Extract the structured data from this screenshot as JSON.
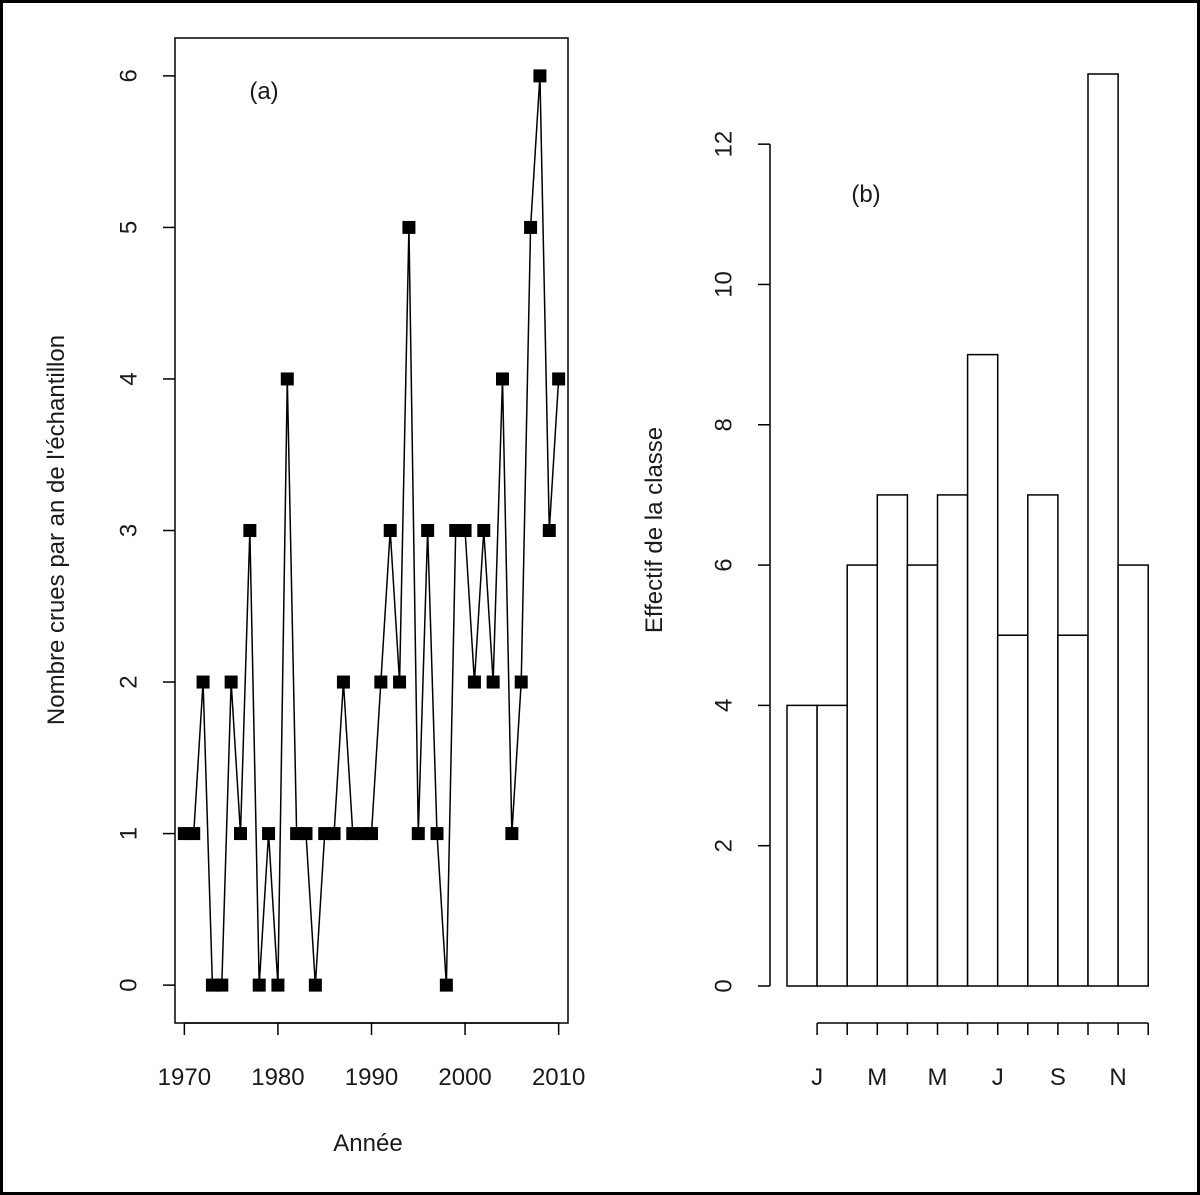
{
  "chart_data": [
    {
      "type": "line",
      "panel_label": "(a)",
      "xlabel": "Année",
      "ylabel": "Nombre crues par an de l'échantillon",
      "x_ticks": [
        1970,
        1980,
        1990,
        2000,
        2010
      ],
      "y_ticks": [
        0,
        1,
        2,
        3,
        4,
        5,
        6
      ],
      "xlim": [
        1969,
        2011
      ],
      "ylim": [
        -0.25,
        6.25
      ],
      "grid": false,
      "series": [
        {
          "x": [
            1970,
            1971,
            1972,
            1973,
            1974,
            1975,
            1976,
            1977,
            1978,
            1979,
            1980,
            1981,
            1982,
            1983,
            1984,
            1985,
            1986,
            1987,
            1988,
            1989,
            1990,
            1991,
            1992,
            1993,
            1994,
            1995,
            1996,
            1997,
            1998,
            1999,
            2000,
            2001,
            2002,
            2003,
            2004,
            2005,
            2006,
            2007,
            2008,
            2009,
            2010
          ],
          "values": [
            1,
            1,
            2,
            0,
            0,
            2,
            1,
            3,
            0,
            1,
            0,
            4,
            1,
            1,
            0,
            1,
            1,
            2,
            1,
            1,
            1,
            2,
            3,
            2,
            5,
            1,
            3,
            1,
            0,
            3,
            3,
            2,
            3,
            2,
            4,
            1,
            2,
            5,
            6,
            3,
            4
          ]
        }
      ]
    },
    {
      "type": "bar",
      "panel_label": "(b)",
      "xlabel": "",
      "ylabel": "Effectif de la classe",
      "x_tick_labels": [
        "J",
        "M",
        "M",
        "J",
        "S",
        "N"
      ],
      "y_ticks": [
        0,
        2,
        4,
        6,
        8,
        10,
        12
      ],
      "ylim": [
        0,
        13
      ],
      "grid": false,
      "values": [
        4,
        4,
        6,
        7,
        6,
        7,
        9,
        5,
        7,
        5,
        13,
        6
      ]
    }
  ]
}
